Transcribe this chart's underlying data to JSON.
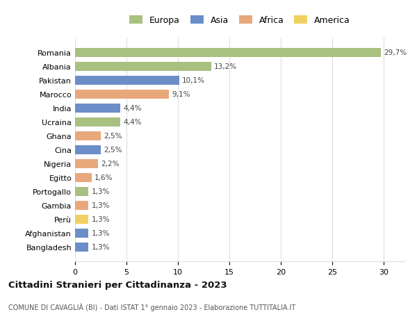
{
  "countries": [
    "Romania",
    "Albania",
    "Pakistan",
    "Marocco",
    "India",
    "Ucraina",
    "Ghana",
    "Cina",
    "Nigeria",
    "Egitto",
    "Portogallo",
    "Gambia",
    "Perù",
    "Afghanistan",
    "Bangladesh"
  ],
  "values": [
    29.7,
    13.2,
    10.1,
    9.1,
    4.4,
    4.4,
    2.5,
    2.5,
    2.2,
    1.6,
    1.3,
    1.3,
    1.3,
    1.3,
    1.3
  ],
  "labels": [
    "29,7%",
    "13,2%",
    "10,1%",
    "9,1%",
    "4,4%",
    "4,4%",
    "2,5%",
    "2,5%",
    "2,2%",
    "1,6%",
    "1,3%",
    "1,3%",
    "1,3%",
    "1,3%",
    "1,3%"
  ],
  "colors": [
    "#a8c080",
    "#a8c080",
    "#6b8ec9",
    "#e8a87c",
    "#6b8ec9",
    "#a8c080",
    "#e8a87c",
    "#6b8ec9",
    "#e8a87c",
    "#e8a87c",
    "#a8c080",
    "#e8a87c",
    "#f0d060",
    "#6b8ec9",
    "#6b8ec9"
  ],
  "continent_colors": {
    "Europa": "#a8c080",
    "Asia": "#6b8ec9",
    "Africa": "#e8a87c",
    "America": "#f0d060"
  },
  "title": "Cittadini Stranieri per Cittadinanza - 2023",
  "subtitle_display": "COMUNE DI CAVAGLIÀ (BI) - Dati ISTAT 1° gennaio 2023 - Elaborazione TUTTITALIA.IT",
  "xlim": [
    0,
    32
  ],
  "xticks": [
    0,
    5,
    10,
    15,
    20,
    25,
    30
  ],
  "background_color": "#ffffff",
  "grid_color": "#dddddd"
}
